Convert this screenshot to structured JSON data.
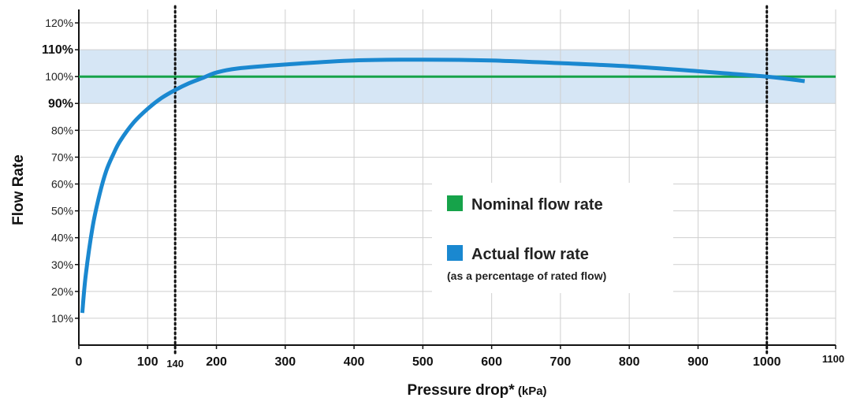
{
  "chart_data": {
    "type": "line",
    "xlabel_main": "Pressure drop*",
    "xlabel_unit": " (kPa)",
    "ylabel": "Flow Rate",
    "xlim": [
      0,
      1100
    ],
    "ylim": [
      0,
      125
    ],
    "x_ticks": [
      {
        "value": 0,
        "label": "0"
      },
      {
        "value": 100,
        "label": "100"
      },
      {
        "value": 200,
        "label": "200"
      },
      {
        "value": 300,
        "label": "300"
      },
      {
        "value": 400,
        "label": "400"
      },
      {
        "value": 500,
        "label": "500"
      },
      {
        "value": 600,
        "label": "600"
      },
      {
        "value": 700,
        "label": "700"
      },
      {
        "value": 800,
        "label": "800"
      },
      {
        "value": 900,
        "label": "900"
      },
      {
        "value": 1000,
        "label": "1000"
      },
      {
        "value": 1100,
        "label": "1100"
      }
    ],
    "y_ticks": [
      {
        "value": 10,
        "label": "10%",
        "bold": false
      },
      {
        "value": 20,
        "label": "20%",
        "bold": false
      },
      {
        "value": 30,
        "label": "30%",
        "bold": false
      },
      {
        "value": 40,
        "label": "40%",
        "bold": false
      },
      {
        "value": 50,
        "label": "50%",
        "bold": false
      },
      {
        "value": 60,
        "label": "60%",
        "bold": false
      },
      {
        "value": 70,
        "label": "70%",
        "bold": false
      },
      {
        "value": 80,
        "label": "80%",
        "bold": false
      },
      {
        "value": 90,
        "label": "90%",
        "bold": true
      },
      {
        "value": 100,
        "label": "100%",
        "bold": false
      },
      {
        "value": 110,
        "label": "110%",
        "bold": true
      },
      {
        "value": 120,
        "label": "120%",
        "bold": false
      }
    ],
    "band": {
      "from": 90,
      "to": 110,
      "color": "#d6e6f5"
    },
    "vlines": [
      {
        "x": 140,
        "label": "140"
      },
      {
        "x": 1000,
        "label": ""
      }
    ],
    "series": [
      {
        "name": "Nominal flow rate",
        "color": "#16a34a",
        "x": [
          0,
          1100
        ],
        "y": [
          100,
          100
        ]
      },
      {
        "name": "Actual flow rate",
        "note": "(as a percentage of rated flow)",
        "color": "#1a88d0",
        "x": [
          5,
          10,
          20,
          30,
          40,
          50,
          60,
          80,
          100,
          120,
          140,
          160,
          180,
          200,
          230,
          300,
          400,
          500,
          600,
          700,
          800,
          900,
          1000,
          1055
        ],
        "y": [
          12,
          26,
          44,
          56,
          65,
          71,
          76,
          83,
          88,
          92,
          95,
          97.5,
          99.5,
          101.5,
          103,
          104.5,
          106,
          106.3,
          106,
          105,
          103.8,
          102,
          100,
          98.3
        ]
      }
    ],
    "grid": true,
    "legend_position": "center-right"
  }
}
